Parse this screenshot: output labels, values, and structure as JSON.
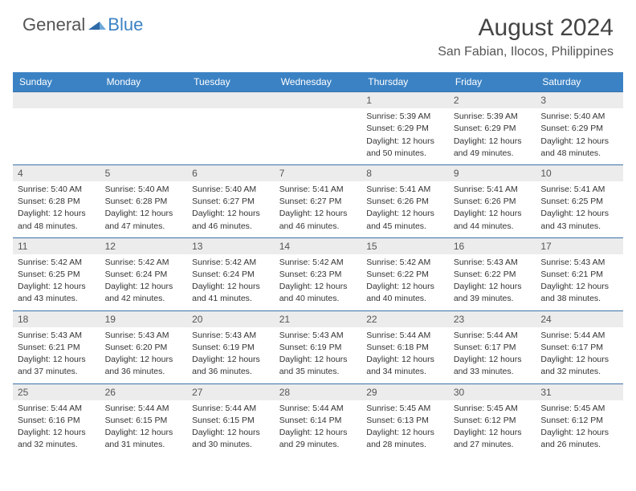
{
  "brand": {
    "part1": "General",
    "part2": "Blue"
  },
  "title": "August 2024",
  "location": "San Fabian, Ilocos, Philippines",
  "colors": {
    "header_bg": "#3b82c4",
    "row_sep": "#3b72a8",
    "daynum_bg": "#ececec",
    "text": "#333333",
    "muted": "#555555"
  },
  "typography": {
    "title_fontsize": 30,
    "location_fontsize": 16,
    "weekday_fontsize": 12,
    "daynum_fontsize": 12,
    "cell_fontsize": 10.5
  },
  "weekdays": [
    "Sunday",
    "Monday",
    "Tuesday",
    "Wednesday",
    "Thursday",
    "Friday",
    "Saturday"
  ],
  "weeks": [
    [
      null,
      null,
      null,
      null,
      {
        "n": "1",
        "sr": "Sunrise: 5:39 AM",
        "ss": "Sunset: 6:29 PM",
        "d1": "Daylight: 12 hours",
        "d2": "and 50 minutes."
      },
      {
        "n": "2",
        "sr": "Sunrise: 5:39 AM",
        "ss": "Sunset: 6:29 PM",
        "d1": "Daylight: 12 hours",
        "d2": "and 49 minutes."
      },
      {
        "n": "3",
        "sr": "Sunrise: 5:40 AM",
        "ss": "Sunset: 6:29 PM",
        "d1": "Daylight: 12 hours",
        "d2": "and 48 minutes."
      }
    ],
    [
      {
        "n": "4",
        "sr": "Sunrise: 5:40 AM",
        "ss": "Sunset: 6:28 PM",
        "d1": "Daylight: 12 hours",
        "d2": "and 48 minutes."
      },
      {
        "n": "5",
        "sr": "Sunrise: 5:40 AM",
        "ss": "Sunset: 6:28 PM",
        "d1": "Daylight: 12 hours",
        "d2": "and 47 minutes."
      },
      {
        "n": "6",
        "sr": "Sunrise: 5:40 AM",
        "ss": "Sunset: 6:27 PM",
        "d1": "Daylight: 12 hours",
        "d2": "and 46 minutes."
      },
      {
        "n": "7",
        "sr": "Sunrise: 5:41 AM",
        "ss": "Sunset: 6:27 PM",
        "d1": "Daylight: 12 hours",
        "d2": "and 46 minutes."
      },
      {
        "n": "8",
        "sr": "Sunrise: 5:41 AM",
        "ss": "Sunset: 6:26 PM",
        "d1": "Daylight: 12 hours",
        "d2": "and 45 minutes."
      },
      {
        "n": "9",
        "sr": "Sunrise: 5:41 AM",
        "ss": "Sunset: 6:26 PM",
        "d1": "Daylight: 12 hours",
        "d2": "and 44 minutes."
      },
      {
        "n": "10",
        "sr": "Sunrise: 5:41 AM",
        "ss": "Sunset: 6:25 PM",
        "d1": "Daylight: 12 hours",
        "d2": "and 43 minutes."
      }
    ],
    [
      {
        "n": "11",
        "sr": "Sunrise: 5:42 AM",
        "ss": "Sunset: 6:25 PM",
        "d1": "Daylight: 12 hours",
        "d2": "and 43 minutes."
      },
      {
        "n": "12",
        "sr": "Sunrise: 5:42 AM",
        "ss": "Sunset: 6:24 PM",
        "d1": "Daylight: 12 hours",
        "d2": "and 42 minutes."
      },
      {
        "n": "13",
        "sr": "Sunrise: 5:42 AM",
        "ss": "Sunset: 6:24 PM",
        "d1": "Daylight: 12 hours",
        "d2": "and 41 minutes."
      },
      {
        "n": "14",
        "sr": "Sunrise: 5:42 AM",
        "ss": "Sunset: 6:23 PM",
        "d1": "Daylight: 12 hours",
        "d2": "and 40 minutes."
      },
      {
        "n": "15",
        "sr": "Sunrise: 5:42 AM",
        "ss": "Sunset: 6:22 PM",
        "d1": "Daylight: 12 hours",
        "d2": "and 40 minutes."
      },
      {
        "n": "16",
        "sr": "Sunrise: 5:43 AM",
        "ss": "Sunset: 6:22 PM",
        "d1": "Daylight: 12 hours",
        "d2": "and 39 minutes."
      },
      {
        "n": "17",
        "sr": "Sunrise: 5:43 AM",
        "ss": "Sunset: 6:21 PM",
        "d1": "Daylight: 12 hours",
        "d2": "and 38 minutes."
      }
    ],
    [
      {
        "n": "18",
        "sr": "Sunrise: 5:43 AM",
        "ss": "Sunset: 6:21 PM",
        "d1": "Daylight: 12 hours",
        "d2": "and 37 minutes."
      },
      {
        "n": "19",
        "sr": "Sunrise: 5:43 AM",
        "ss": "Sunset: 6:20 PM",
        "d1": "Daylight: 12 hours",
        "d2": "and 36 minutes."
      },
      {
        "n": "20",
        "sr": "Sunrise: 5:43 AM",
        "ss": "Sunset: 6:19 PM",
        "d1": "Daylight: 12 hours",
        "d2": "and 36 minutes."
      },
      {
        "n": "21",
        "sr": "Sunrise: 5:43 AM",
        "ss": "Sunset: 6:19 PM",
        "d1": "Daylight: 12 hours",
        "d2": "and 35 minutes."
      },
      {
        "n": "22",
        "sr": "Sunrise: 5:44 AM",
        "ss": "Sunset: 6:18 PM",
        "d1": "Daylight: 12 hours",
        "d2": "and 34 minutes."
      },
      {
        "n": "23",
        "sr": "Sunrise: 5:44 AM",
        "ss": "Sunset: 6:17 PM",
        "d1": "Daylight: 12 hours",
        "d2": "and 33 minutes."
      },
      {
        "n": "24",
        "sr": "Sunrise: 5:44 AM",
        "ss": "Sunset: 6:17 PM",
        "d1": "Daylight: 12 hours",
        "d2": "and 32 minutes."
      }
    ],
    [
      {
        "n": "25",
        "sr": "Sunrise: 5:44 AM",
        "ss": "Sunset: 6:16 PM",
        "d1": "Daylight: 12 hours",
        "d2": "and 32 minutes."
      },
      {
        "n": "26",
        "sr": "Sunrise: 5:44 AM",
        "ss": "Sunset: 6:15 PM",
        "d1": "Daylight: 12 hours",
        "d2": "and 31 minutes."
      },
      {
        "n": "27",
        "sr": "Sunrise: 5:44 AM",
        "ss": "Sunset: 6:15 PM",
        "d1": "Daylight: 12 hours",
        "d2": "and 30 minutes."
      },
      {
        "n": "28",
        "sr": "Sunrise: 5:44 AM",
        "ss": "Sunset: 6:14 PM",
        "d1": "Daylight: 12 hours",
        "d2": "and 29 minutes."
      },
      {
        "n": "29",
        "sr": "Sunrise: 5:45 AM",
        "ss": "Sunset: 6:13 PM",
        "d1": "Daylight: 12 hours",
        "d2": "and 28 minutes."
      },
      {
        "n": "30",
        "sr": "Sunrise: 5:45 AM",
        "ss": "Sunset: 6:12 PM",
        "d1": "Daylight: 12 hours",
        "d2": "and 27 minutes."
      },
      {
        "n": "31",
        "sr": "Sunrise: 5:45 AM",
        "ss": "Sunset: 6:12 PM",
        "d1": "Daylight: 12 hours",
        "d2": "and 26 minutes."
      }
    ]
  ]
}
